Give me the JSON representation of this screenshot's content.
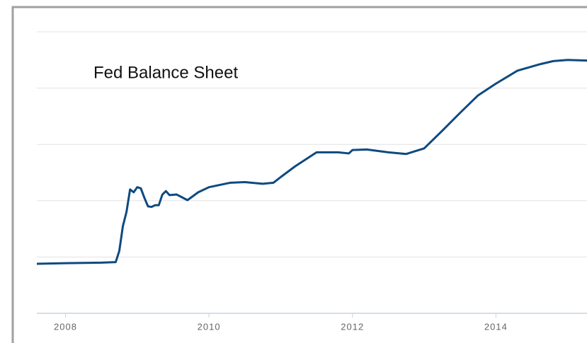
{
  "chart_data": {
    "type": "line",
    "title": "Fed Balance Sheet",
    "x": [
      2007.6,
      2008.0,
      2008.5,
      2008.7,
      2008.75,
      2008.8,
      2008.85,
      2008.9,
      2008.95,
      2009.0,
      2009.05,
      2009.1,
      2009.15,
      2009.2,
      2009.25,
      2009.3,
      2009.35,
      2009.4,
      2009.45,
      2009.55,
      2009.7,
      2009.85,
      2010.0,
      2010.3,
      2010.5,
      2010.75,
      2010.9,
      2011.0,
      2011.2,
      2011.5,
      2011.8,
      2011.95,
      2012.0,
      2012.2,
      2012.5,
      2012.75,
      2013.0,
      2013.25,
      2013.5,
      2013.75,
      2014.0,
      2014.3,
      2014.6,
      2014.8,
      2015.0,
      2015.27
    ],
    "series": [
      {
        "color": "#0d4a80",
        "values": [
          0.88,
          0.89,
          0.9,
          0.91,
          1.11,
          1.55,
          1.8,
          2.2,
          2.15,
          2.24,
          2.22,
          2.05,
          1.9,
          1.89,
          1.92,
          1.92,
          2.11,
          2.17,
          2.1,
          2.11,
          2.01,
          2.15,
          2.24,
          2.32,
          2.33,
          2.3,
          2.32,
          2.42,
          2.61,
          2.86,
          2.86,
          2.84,
          2.9,
          2.91,
          2.86,
          2.83,
          2.93,
          3.24,
          3.56,
          3.87,
          4.08,
          4.31,
          4.42,
          4.48,
          4.5,
          4.49
        ]
      }
    ],
    "xlim": [
      2007.6,
      2015.27
    ],
    "xticks": [
      2008,
      2010,
      2012,
      2014
    ],
    "ylim": [
      0,
      5
    ],
    "yticks": [
      0,
      1,
      2,
      3,
      4,
      5
    ],
    "grid": true
  }
}
